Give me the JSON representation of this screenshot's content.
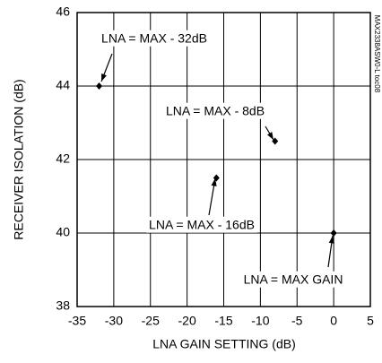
{
  "chart_data": {
    "type": "scatter",
    "x_label": "LNA GAIN SETTING (dB)",
    "y_label": "RECEIVER ISOLATION (dB)",
    "side_note": "MAX2338ASW0-L toc08",
    "x": [
      -32,
      -8,
      -16,
      0
    ],
    "values": [
      44,
      42.5,
      41.5,
      40
    ],
    "color": "#000000",
    "xlim": [
      -35,
      5
    ],
    "xticks": [
      -35,
      -30,
      -25,
      -20,
      -15,
      -10,
      -5,
      0,
      5
    ],
    "ylim": [
      38,
      46
    ],
    "yticks": [
      38,
      40,
      42,
      44,
      46
    ],
    "grid": true,
    "annotations": [
      "LNA = MAX - 32dB",
      "LNA = MAX - 8dB",
      "LNA = MAX - 16dB",
      "LNA = MAX GAIN"
    ]
  }
}
